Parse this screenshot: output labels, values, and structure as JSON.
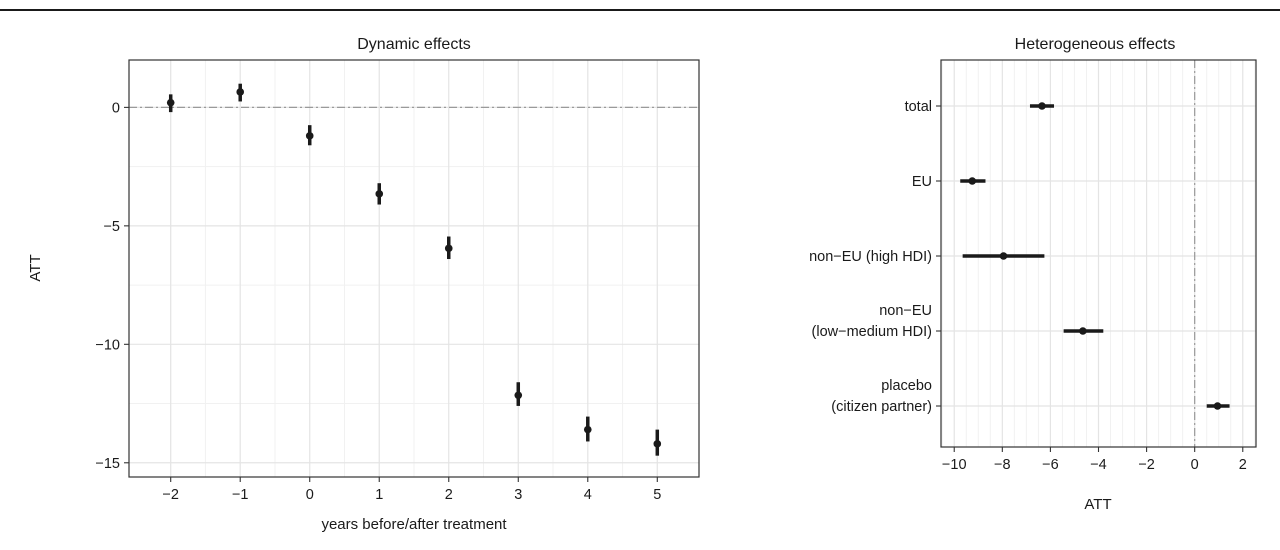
{
  "chart_data": [
    {
      "type": "scatter",
      "title": "Dynamic effects",
      "xlabel": "years before/after treatment",
      "ylabel": "ATT",
      "x": [
        -2,
        -1,
        0,
        1,
        2,
        3,
        4,
        5
      ],
      "y": [
        0.2,
        0.65,
        -1.2,
        -3.65,
        -5.95,
        -12.15,
        -13.6,
        -14.2
      ],
      "ci_low": [
        -0.2,
        0.25,
        -1.6,
        -4.1,
        -6.4,
        -12.6,
        -14.1,
        -14.7
      ],
      "ci_high": [
        0.55,
        1.0,
        -0.75,
        -3.2,
        -5.45,
        -11.6,
        -13.05,
        -13.6
      ],
      "xlim": [
        -2.6,
        5.6
      ],
      "ylim": [
        -15.6,
        2.0
      ],
      "xticks": [
        -2,
        -1,
        0,
        1,
        2,
        3,
        4,
        5
      ],
      "xtick_labels": [
        "−2",
        "−1",
        "0",
        "1",
        "2",
        "3",
        "4",
        "5"
      ],
      "yticks": [
        0,
        -5,
        -10,
        -15
      ],
      "ytick_labels": [
        "0",
        "−5",
        "−10",
        "−15"
      ],
      "reference_line": {
        "axis": "y",
        "value": 0,
        "style": "dash-dot"
      },
      "grid": true
    },
    {
      "type": "scatter",
      "title": "Heterogeneous effects",
      "xlabel": "ATT",
      "ylabel": "",
      "categories": [
        [
          "total"
        ],
        [
          "EU"
        ],
        [
          "non−EU (high HDI)"
        ],
        [
          "non−EU",
          "(low−medium HDI)"
        ],
        [
          "placebo",
          "(citizen partner)"
        ]
      ],
      "x": [
        -6.35,
        -9.25,
        -7.95,
        -4.65,
        0.95
      ],
      "ci_low": [
        -6.85,
        -9.75,
        -9.65,
        -5.45,
        0.5
      ],
      "ci_high": [
        -5.85,
        -8.7,
        -6.25,
        -3.8,
        1.45
      ],
      "xlim": [
        -10.55,
        2.55
      ],
      "xticks": [
        -10,
        -8,
        -6,
        -4,
        -2,
        0,
        2
      ],
      "xtick_labels": [
        "−10",
        "−8",
        "−6",
        "−4",
        "−2",
        "0",
        "2"
      ],
      "reference_line": {
        "axis": "x",
        "value": 0,
        "style": "dash-dot"
      },
      "grid": true
    }
  ],
  "colors": {
    "points": "#1a1a1a",
    "grid_major": "#e4e4e4",
    "grid_minor": "#f1f1f1",
    "reference": "#9a9a9a",
    "panel_border": "#333333"
  }
}
